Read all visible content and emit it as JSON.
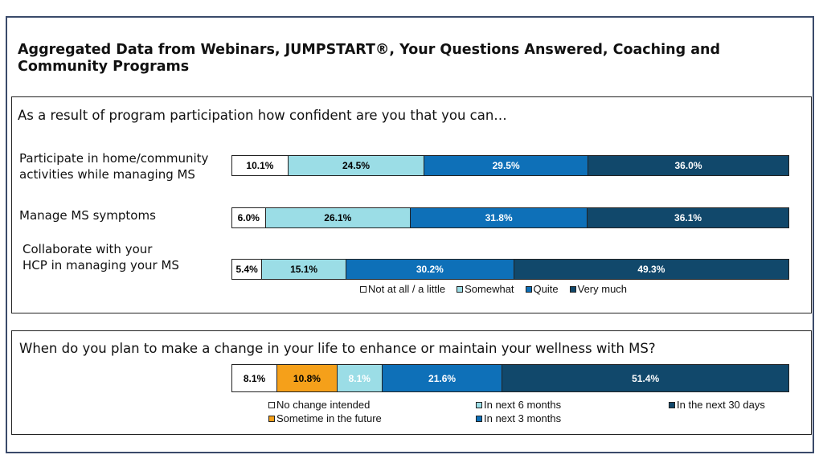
{
  "title": "Aggregated Data from Webinars, JUMPSTART®, Your Questions Answered, Coaching and Community Programs",
  "chart_data": [
    {
      "type": "bar",
      "orientation": "horizontal",
      "stacked": true,
      "unit": "%",
      "title": "As a result of program participation how confident are you that you can…",
      "categories": [
        "Participate in home/community\nactivities while managing MS",
        "Manage MS symptoms",
        "Collaborate with your\nHCP in managing your MS"
      ],
      "series": [
        {
          "name": "Not at all / a little",
          "color": "#ffffff",
          "text_color": "#000000",
          "values": [
            10.1,
            6.0,
            5.4
          ],
          "labels": [
            "10.1%",
            "6.0%",
            "5.4%"
          ]
        },
        {
          "name": "Somewhat",
          "color": "#9bdde6",
          "text_color": "#000000",
          "values": [
            24.5,
            26.1,
            15.1
          ],
          "labels": [
            "24.5%",
            "26.1%",
            "15.1%"
          ]
        },
        {
          "name": "Quite",
          "color": "#0e70b8",
          "text_color": "#ffffff",
          "values": [
            29.5,
            31.8,
            30.2
          ],
          "labels": [
            "29.5%",
            "31.8%",
            "30.2%"
          ]
        },
        {
          "name": "Very much",
          "color": "#11486b",
          "text_color": "#ffffff",
          "values": [
            36.0,
            36.1,
            49.3
          ],
          "labels": [
            "36.0%",
            "36.1%",
            "49.3%"
          ]
        }
      ],
      "legend_position": "bottom"
    },
    {
      "type": "bar",
      "orientation": "horizontal",
      "stacked": true,
      "unit": "%",
      "title": "When do you plan to make a change in your life to enhance or maintain your wellness with MS?",
      "categories": [
        ""
      ],
      "series": [
        {
          "name": "No change intended",
          "color": "#ffffff",
          "text_color": "#000000",
          "values": [
            8.1
          ],
          "labels": [
            "8.1%"
          ]
        },
        {
          "name": "Sometime in the future",
          "color": "#f5a01a",
          "text_color": "#000000",
          "values": [
            10.8
          ],
          "labels": [
            "10.8%"
          ]
        },
        {
          "name": "In next 6 months",
          "color": "#9bdde6",
          "text_color": "#ffffff",
          "values": [
            8.1
          ],
          "labels": [
            "8.1%"
          ]
        },
        {
          "name": "In next 3 months",
          "color": "#0e70b8",
          "text_color": "#ffffff",
          "values": [
            21.6
          ],
          "labels": [
            "21.6%"
          ]
        },
        {
          "name": "In the next 30 days",
          "color": "#11486b",
          "text_color": "#ffffff",
          "values": [
            51.4
          ],
          "labels": [
            "51.4%"
          ]
        }
      ],
      "legend_position": "bottom"
    }
  ]
}
